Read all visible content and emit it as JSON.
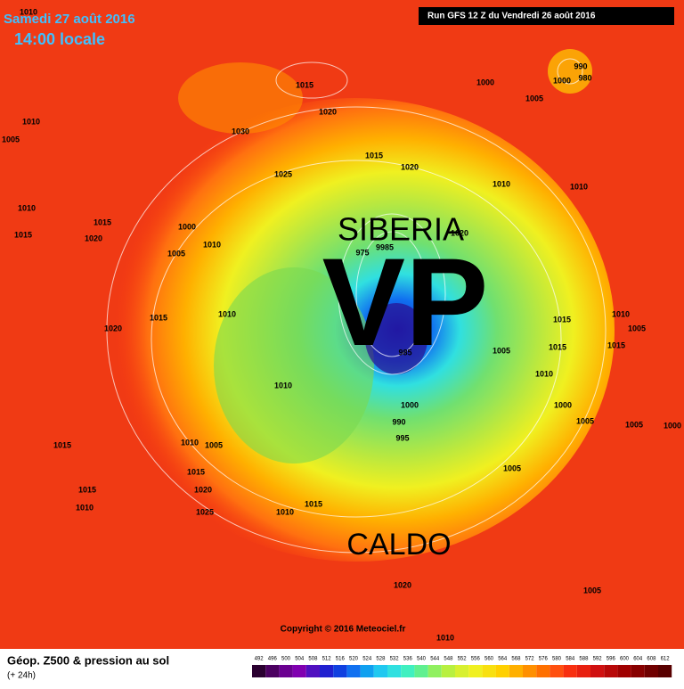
{
  "header": {
    "date": "Samedi 27 août 2016",
    "time": "14:00 locale",
    "run": "Run GFS 12 Z du Vendredi 26 août 2016"
  },
  "annotations": {
    "region": "SIBERIA",
    "vortex": "VP",
    "heat": "CALDO"
  },
  "copyright": "Copyright © 2016 Meteociel.fr",
  "pressure_labels": [
    "1010",
    "1010",
    "1005",
    "1015",
    "1010",
    "1015",
    "1020",
    "1030",
    "1015",
    "1020",
    "1025",
    "1015",
    "1020",
    "1000",
    "1005",
    "990",
    "980",
    "1000",
    "1010",
    "1010",
    "1000",
    "1010",
    "1005",
    "1010",
    "1015",
    "1020",
    "975",
    "9985",
    "1020",
    "985",
    "1005",
    "1015",
    "1010",
    "1015",
    "1005",
    "1015",
    "1010",
    "1000",
    "1005",
    "1005",
    "1000",
    "1010",
    "1000",
    "990",
    "995",
    "1005",
    "1010",
    "1015",
    "1015",
    "1020",
    "1025",
    "1015",
    "1010",
    "1010",
    "1015",
    "1005",
    "1020",
    "1005",
    "1010"
  ],
  "legend": {
    "title": "Géop. Z500 & pression au sol",
    "lead": "(+ 24h)",
    "ticks": [
      492,
      496,
      500,
      504,
      508,
      512,
      516,
      520,
      524,
      528,
      532,
      536,
      540,
      544,
      548,
      552,
      556,
      560,
      564,
      568,
      572,
      576,
      580,
      584,
      588,
      592,
      596,
      600,
      604,
      608,
      612
    ],
    "colors": [
      "#2a0030",
      "#4b0060",
      "#6a0090",
      "#8000b0",
      "#5010c0",
      "#2020d0",
      "#1040e0",
      "#1070f0",
      "#10a0f0",
      "#20c8f0",
      "#30e0e0",
      "#40f0c0",
      "#60f090",
      "#90f060",
      "#b8f040",
      "#d8f030",
      "#f0f020",
      "#f8e010",
      "#ffd000",
      "#ffb000",
      "#ff9000",
      "#ff7000",
      "#ff5010",
      "#f83010",
      "#e82010",
      "#d01010",
      "#b80808",
      "#a00000",
      "#880000",
      "#700000",
      "#580000"
    ]
  }
}
